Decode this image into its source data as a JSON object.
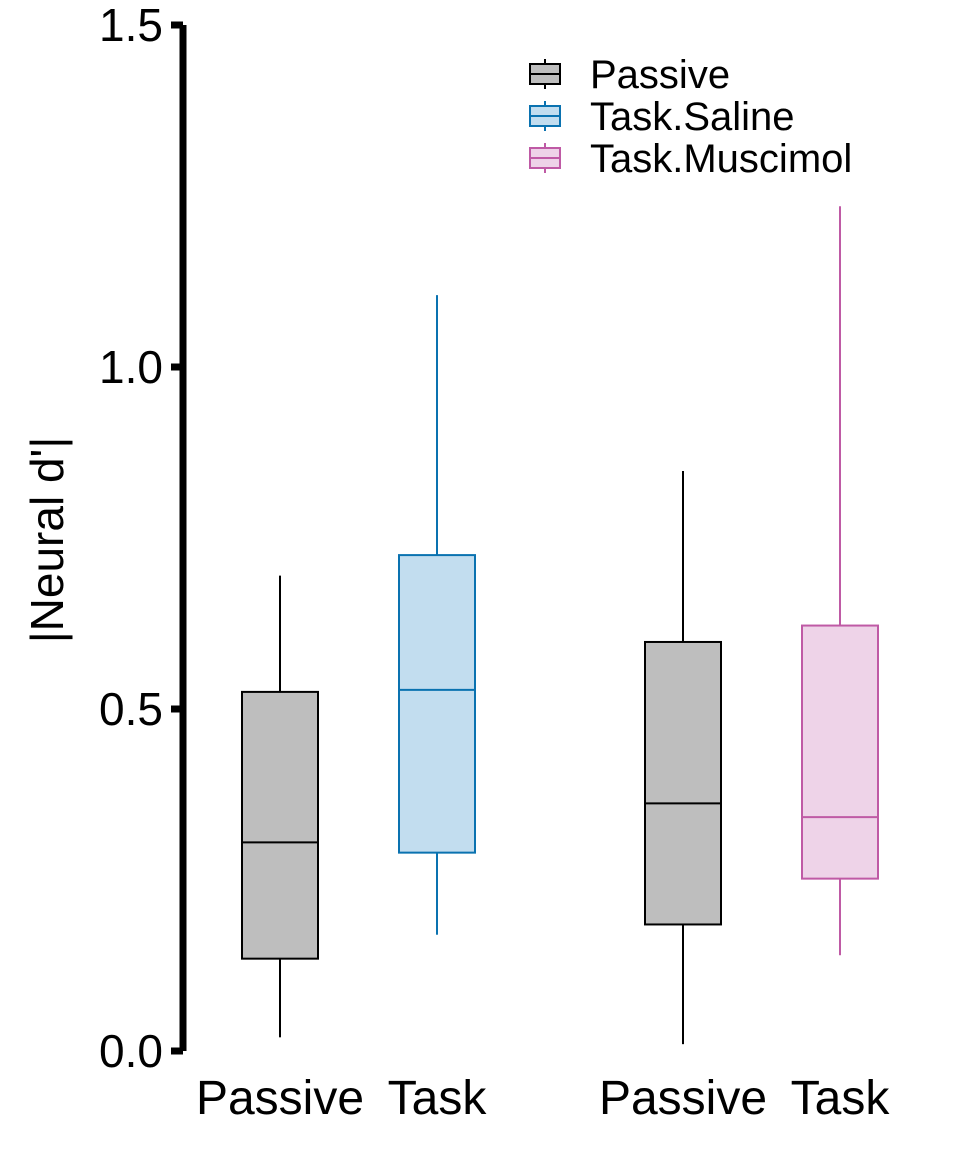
{
  "chart_data": {
    "type": "box",
    "ylabel": "|Neural d'|",
    "ylim": [
      0,
      1.5
    ],
    "yticks": [
      "0.0",
      "0.5",
      "1.0",
      "1.5"
    ],
    "x_tick_labels": [
      "Passive",
      "Task",
      "Passive",
      "Task"
    ],
    "legend": {
      "placement": "top-right",
      "entries": [
        {
          "name": "Passive",
          "fill": "#bebebe",
          "stroke": "#000000"
        },
        {
          "name": "Task.Saline",
          "fill": "#c2ddef",
          "stroke": "#0a72b0"
        },
        {
          "name": "Task.Muscimol",
          "fill": "#eed3e8",
          "stroke": "#bf5aa5"
        }
      ]
    },
    "boxes": [
      {
        "group": 1,
        "label": "Passive",
        "series": "Passive",
        "whisker_low": 0.02,
        "q1": 0.135,
        "median": 0.305,
        "q3": 0.525,
        "whisker_high": 0.695
      },
      {
        "group": 1,
        "label": "Task",
        "series": "Task.Saline",
        "whisker_low": 0.17,
        "q1": 0.29,
        "median": 0.528,
        "q3": 0.725,
        "whisker_high": 1.105
      },
      {
        "group": 2,
        "label": "Passive",
        "series": "Passive",
        "whisker_low": 0.01,
        "q1": 0.185,
        "median": 0.362,
        "q3": 0.598,
        "whisker_high": 0.848
      },
      {
        "group": 2,
        "label": "Task",
        "series": "Task.Muscimol",
        "whisker_low": 0.14,
        "q1": 0.252,
        "median": 0.342,
        "q3": 0.622,
        "whisker_high": 1.235
      }
    ]
  }
}
